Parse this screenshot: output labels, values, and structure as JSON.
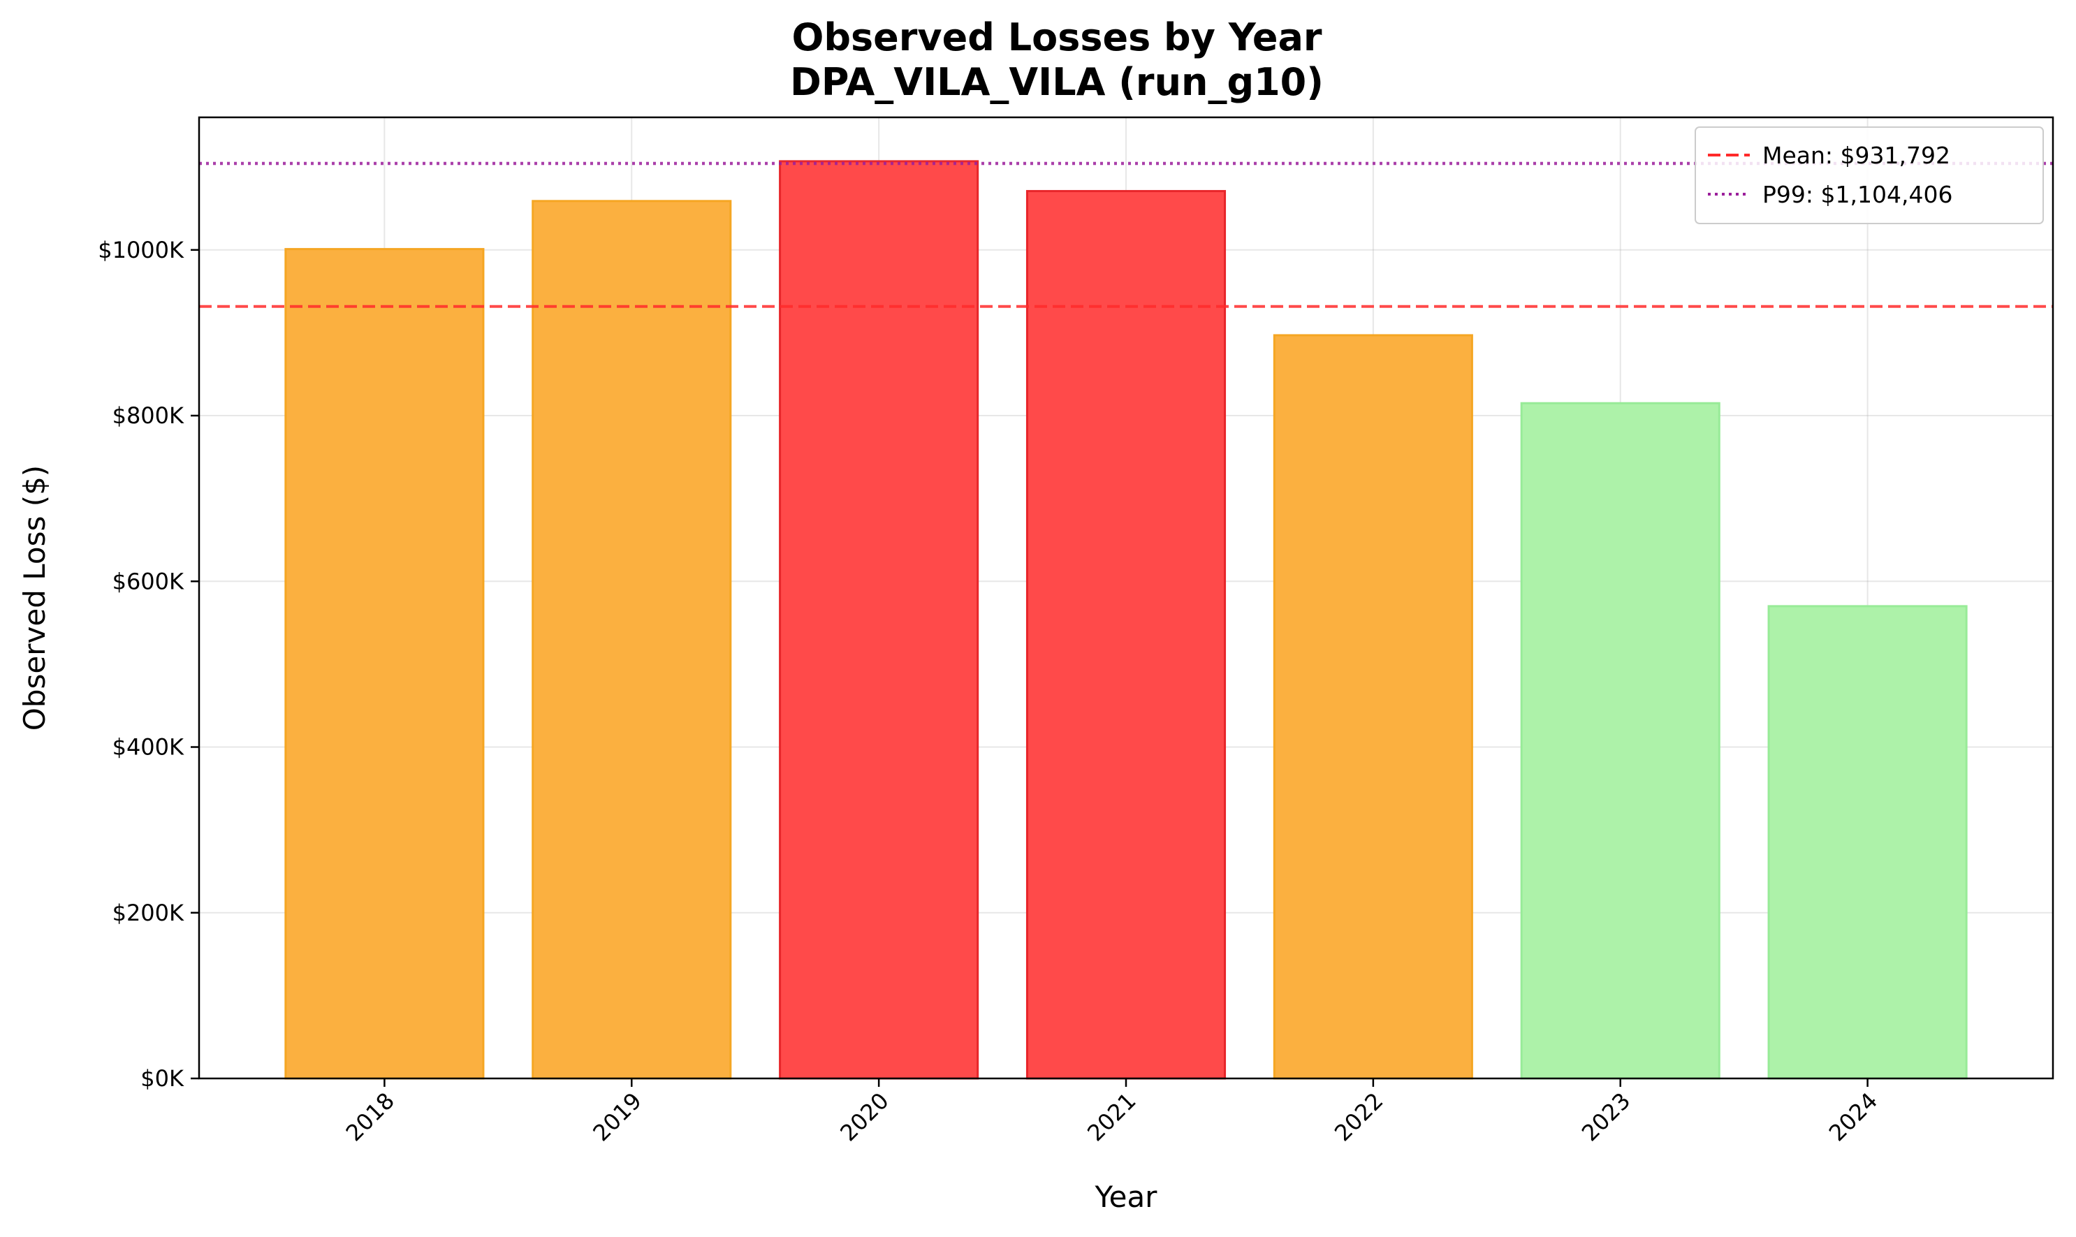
{
  "chart_data": {
    "type": "bar",
    "title": "Observed Losses by Year",
    "subtitle": "DPA_VILA_VILA (run_g10)",
    "xlabel": "Year",
    "ylabel": "Observed Loss ($)",
    "categories": [
      "2018",
      "2019",
      "2020",
      "2021",
      "2022",
      "2023",
      "2024"
    ],
    "values": [
      1001000,
      1059000,
      1107000,
      1071000,
      897000,
      815000,
      570000
    ],
    "bar_colors": [
      "#fbb040",
      "#fbb040",
      "#ff4a4a",
      "#ff4a4a",
      "#fbb040",
      "#adf2a9",
      "#adf2a9"
    ],
    "bar_edge_colors": [
      "#f5a623",
      "#f5a623",
      "#e8262a",
      "#e8262a",
      "#f5a623",
      "#98eb98",
      "#98eb98"
    ],
    "ylim": [
      0,
      1160000
    ],
    "yticks": [
      0,
      200000,
      400000,
      600000,
      800000,
      1000000
    ],
    "ytick_labels": [
      "$0K",
      "$200K",
      "$400K",
      "$600K",
      "$800K",
      "$1000K"
    ],
    "grid": true,
    "reference_lines": [
      {
        "name": "Mean: $931,792",
        "value": 931792,
        "color": "#ff2a2a",
        "style": "dashed"
      },
      {
        "name": "P99: $1,104,406",
        "value": 1104406,
        "color": "#9b1f9b",
        "style": "dotted"
      }
    ],
    "legend_position": "top-right"
  }
}
